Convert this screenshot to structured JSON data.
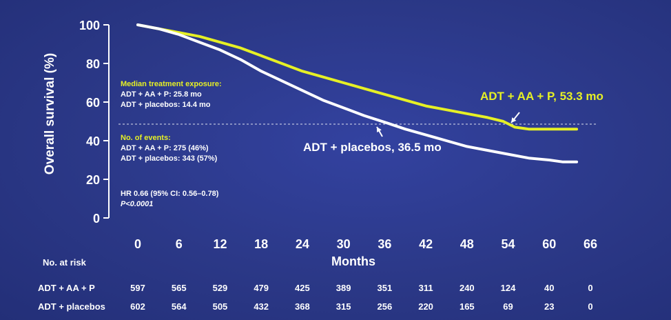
{
  "chart_data": {
    "type": "line",
    "ylabel": "Overall survival (%)",
    "xlabel": "Months",
    "xlim": [
      0,
      66
    ],
    "ylim": [
      0,
      100
    ],
    "x_ticks": [
      "0",
      "6",
      "12",
      "18",
      "24",
      "30",
      "36",
      "42",
      "48",
      "54",
      "60",
      "66"
    ],
    "y_ticks": [
      "100",
      "80",
      "60",
      "40",
      "20",
      "0"
    ],
    "reference_line_y": 50,
    "series": [
      {
        "name": "ADT + AA + P, 53.3 mo",
        "color": "#e6f025",
        "x": [
          0,
          3,
          6,
          9,
          12,
          15,
          18,
          21,
          24,
          27,
          30,
          33,
          36,
          39,
          42,
          45,
          48,
          51,
          53.3,
          55,
          57,
          60,
          62,
          64
        ],
        "y": [
          100,
          98,
          96,
          94,
          91,
          88,
          84,
          80,
          76,
          73,
          70,
          67,
          64,
          61,
          58,
          56,
          54,
          52,
          50,
          47,
          46,
          46,
          46,
          46
        ]
      },
      {
        "name": "ADT + placebos, 36.5 mo",
        "color": "#ffffff",
        "x": [
          0,
          3,
          6,
          9,
          12,
          15,
          18,
          21,
          24,
          27,
          30,
          33,
          36.5,
          39,
          42,
          45,
          48,
          51,
          54,
          57,
          60,
          62,
          64
        ],
        "y": [
          100,
          98,
          95,
          91,
          87,
          82,
          76,
          71,
          66,
          61,
          57,
          53,
          49,
          46,
          43,
          40,
          37,
          35,
          33,
          31,
          30,
          29,
          29
        ]
      }
    ],
    "median_lines": {
      "yellow_label": "ADT + AA + P,  53.3 mo",
      "white_label": "ADT + placebos, 36.5 mo"
    }
  },
  "annotations": {
    "exposure_title": "Median treatment exposure:",
    "exposure_aap": "ADT + AA + P: 25.8 mo",
    "exposure_placebo": "ADT + placebos: 14.4 mo",
    "events_title": "No. of events:",
    "events_aap": "ADT + AA + P: 275 (46%)",
    "events_placebo": "ADT + placebos: 343 (57%)",
    "hr": "HR 0.66 (95% CI: 0.56–0.78)",
    "p": "P<0.0001"
  },
  "risk_table": {
    "title": "No. at risk",
    "rows": [
      {
        "label": "ADT + AA + P",
        "values": [
          "597",
          "565",
          "529",
          "479",
          "425",
          "389",
          "351",
          "311",
          "240",
          "124",
          "40",
          "0"
        ]
      },
      {
        "label": "ADT + placebos",
        "values": [
          "602",
          "564",
          "505",
          "432",
          "368",
          "315",
          "256",
          "220",
          "165",
          "69",
          "23",
          "0"
        ]
      }
    ]
  }
}
